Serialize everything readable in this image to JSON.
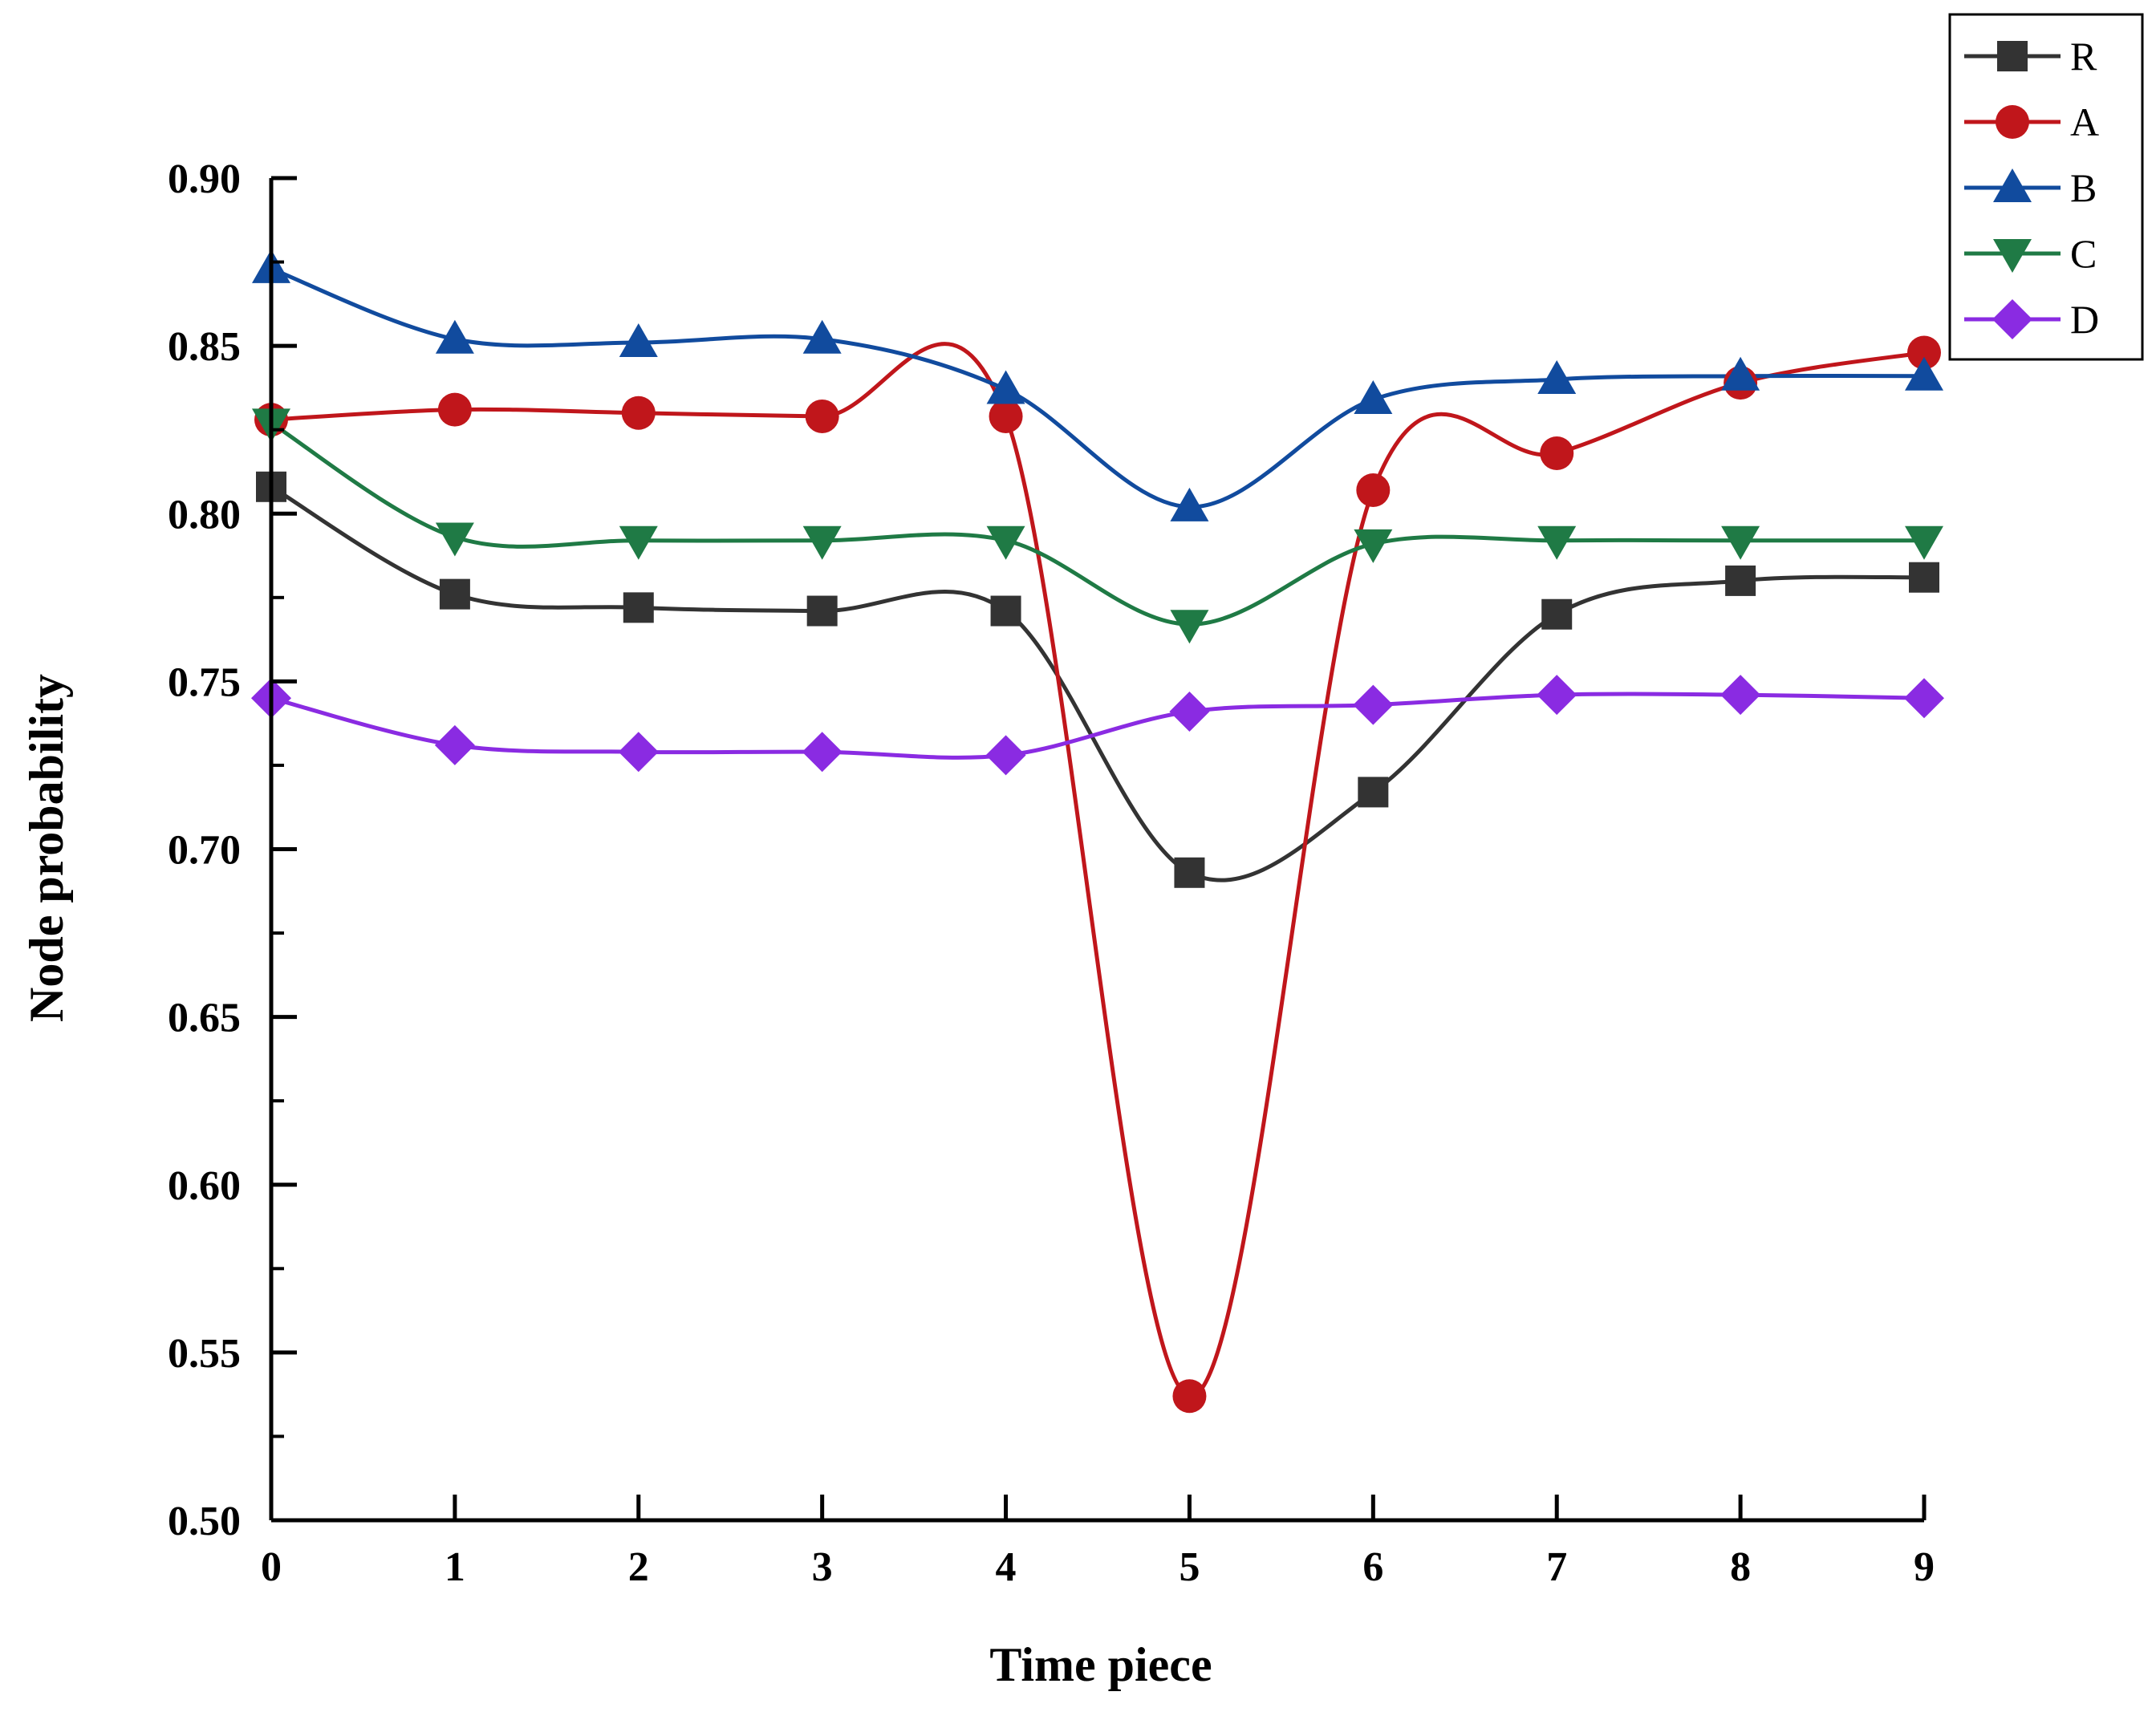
{
  "chart_data": {
    "type": "line",
    "title": "",
    "xlabel": "Time piece",
    "ylabel": "Node probability",
    "xlim": [
      0,
      9
    ],
    "ylim": [
      0.5,
      0.9
    ],
    "x": [
      0,
      1,
      2,
      3,
      4,
      5,
      6,
      7,
      8,
      9
    ],
    "x_ticks": [
      0,
      1,
      2,
      3,
      4,
      5,
      6,
      7,
      8,
      9
    ],
    "x_tick_labels": [
      "0",
      "1",
      "2",
      "3",
      "4",
      "5",
      "6",
      "7",
      "8",
      "9"
    ],
    "y_ticks": [
      0.5,
      0.55,
      0.6,
      0.65,
      0.7,
      0.75,
      0.8,
      0.85,
      0.9
    ],
    "y_tick_labels": [
      "0.50",
      "0.55",
      "0.60",
      "0.65",
      "0.70",
      "0.75",
      "0.80",
      "0.85",
      "0.90"
    ],
    "grid": false,
    "legend_position": "top-right",
    "smooth": true,
    "series": [
      {
        "name": "R",
        "color": "#333333",
        "marker": "square",
        "values": [
          0.808,
          0.776,
          0.772,
          0.771,
          0.771,
          0.693,
          0.717,
          0.77,
          0.78,
          0.781
        ]
      },
      {
        "name": "A",
        "color": "#c0161b",
        "marker": "circle",
        "values": [
          0.828,
          0.831,
          0.83,
          0.829,
          0.829,
          0.537,
          0.807,
          0.818,
          0.839,
          0.848
        ]
      },
      {
        "name": "B",
        "color": "#114b9e",
        "marker": "triangle-up",
        "values": [
          0.873,
          0.852,
          0.851,
          0.852,
          0.837,
          0.802,
          0.834,
          0.84,
          0.841,
          0.841
        ]
      },
      {
        "name": "C",
        "color": "#1f7a45",
        "marker": "triangle-down",
        "values": [
          0.827,
          0.793,
          0.792,
          0.792,
          0.792,
          0.767,
          0.791,
          0.792,
          0.792,
          0.792
        ]
      },
      {
        "name": "D",
        "color": "#8a2be2",
        "marker": "diamond",
        "values": [
          0.745,
          0.731,
          0.729,
          0.729,
          0.728,
          0.741,
          0.743,
          0.746,
          0.746,
          0.745
        ]
      }
    ]
  }
}
